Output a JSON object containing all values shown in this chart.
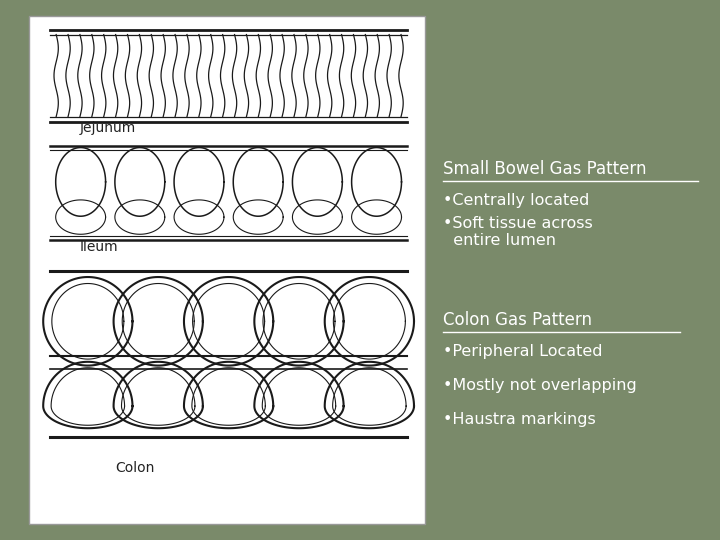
{
  "bg_color": "#7a8a6a",
  "panel_bg": "#ffffff",
  "text_color": "#ffffff",
  "title_sb": "Small Bowel Gas Pattern",
  "bullet_sb1": "•Centrally located",
  "bullet_sb2": "•Soft tissue across\n  entire lumen",
  "title_colon": "Colon Gas Pattern",
  "bullet_c1": "•Peripheral Located",
  "bullet_c2": "•Mostly not overlapping",
  "bullet_c3": "•Haustra markings",
  "label_jejunum": "Jejunum",
  "label_ileum": "Ileum",
  "label_colon": "Colon",
  "label_color": "#222222",
  "line_color": "#1a1a1a",
  "fontsize_title": 12,
  "fontsize_bullet": 11.5,
  "fontsize_label": 10
}
